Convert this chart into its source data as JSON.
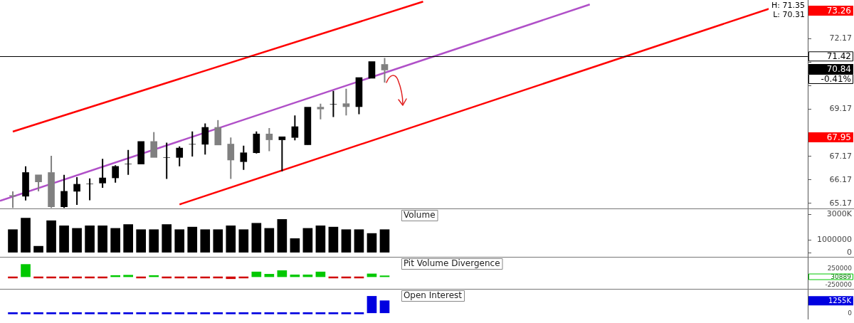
{
  "chart_data": [
    {
      "type": "candlestick",
      "categories": [
        null,
        null,
        null,
        null,
        null,
        null,
        null,
        null,
        null,
        null,
        null,
        null,
        null,
        null,
        null,
        null,
        null,
        null,
        null,
        null,
        null,
        null,
        null,
        null,
        null,
        null,
        null,
        null,
        null,
        null,
        null,
        null,
        null,
        null,
        null,
        null,
        null,
        null,
        null,
        null,
        null,
        null,
        null,
        null,
        null,
        null,
        null,
        null,
        null,
        null,
        null,
        null,
        null,
        null,
        null,
        null,
        null,
        null,
        null,
        null,
        null,
        null,
        null,
        null
      ],
      "colors": [
        null,
        "#808080",
        "#000000",
        "#808080",
        "#808080",
        "#000000",
        "#000000",
        "#000000",
        "#000000",
        "#000000",
        "#000000",
        "#000000",
        "#808080",
        "#000000",
        "#000000",
        "#000000",
        "#000000",
        "#808080",
        "#808080",
        "#000000",
        "#000000",
        "#808080",
        "#000000",
        "#000000",
        "#000000",
        "#808080",
        "#000000",
        "#808080",
        "#000000",
        "#000000",
        "#808080",
        null,
        null,
        null,
        null,
        null,
        null,
        null,
        null,
        null,
        null,
        null,
        null,
        null,
        null,
        null,
        null,
        null,
        null,
        null,
        null,
        null,
        null,
        null,
        null,
        null,
        null,
        null,
        null,
        null,
        null,
        null,
        null,
        null
      ],
      "ohlc": [
        null,
        [
          65.5,
          65.68,
          64.97,
          65.47
        ],
        [
          65.47,
          66.74,
          65.29,
          66.48
        ],
        [
          66.38,
          66.38,
          65.68,
          66.08
        ],
        [
          66.48,
          67.19,
          64.97,
          65.02
        ],
        [
          65.02,
          66.38,
          64.97,
          65.68
        ],
        [
          65.68,
          66.28,
          65.1,
          65.98
        ],
        [
          66.0,
          66.23,
          65.3,
          66.0
        ],
        [
          66.03,
          67.06,
          65.83,
          66.25
        ],
        [
          66.25,
          66.79,
          66.05,
          66.74
        ],
        [
          66.84,
          67.44,
          66.38,
          66.84
        ],
        [
          66.84,
          67.8,
          66.84,
          67.8
        ],
        [
          67.8,
          68.2,
          67.12,
          67.12
        ],
        [
          67.12,
          67.75,
          66.21,
          67.12
        ],
        [
          67.12,
          67.59,
          66.74,
          67.52
        ],
        [
          67.68,
          68.23,
          67.16,
          67.68
        ],
        [
          67.68,
          68.57,
          67.24,
          68.4
        ],
        [
          68.4,
          68.71,
          67.65,
          67.65
        ],
        [
          67.69,
          67.97,
          66.21,
          67.01
        ],
        [
          66.94,
          67.62,
          66.59,
          67.32
        ],
        [
          67.32,
          68.23,
          67.29,
          68.12
        ],
        [
          68.12,
          68.37,
          67.39,
          67.87
        ],
        [
          67.87,
          68.0,
          66.53,
          68.0
        ],
        [
          67.97,
          68.91,
          67.85,
          68.43
        ],
        [
          67.66,
          69.26,
          67.65,
          69.26
        ],
        [
          69.26,
          69.41,
          68.74,
          69.18
        ],
        [
          69.38,
          69.95,
          68.84,
          69.38
        ],
        [
          69.41,
          70.04,
          68.91,
          69.28
        ],
        [
          69.28,
          70.52,
          68.96,
          70.52
        ],
        [
          70.49,
          71.2,
          70.49,
          71.2
        ],
        [
          71.08,
          71.35,
          70.31,
          70.84
        ],
        null,
        null,
        null,
        null,
        null,
        null,
        null,
        null,
        null,
        null,
        null,
        null,
        null,
        null,
        null,
        null,
        null,
        null,
        null,
        null,
        null,
        null,
        null,
        null,
        null,
        null,
        null,
        null,
        null,
        null,
        null,
        null,
        null
      ],
      "series": [
        {
          "type": "line",
          "color": "#ff0000",
          "values": [
            null,
            68.22,
            null,
            null,
            null,
            null,
            null,
            null,
            null,
            null,
            null,
            null,
            null,
            null,
            null,
            null,
            null,
            null,
            null,
            null,
            null,
            null,
            null,
            null,
            null,
            null,
            null,
            null,
            null,
            null,
            null,
            null,
            null,
            73.75,
            null,
            null,
            null,
            null,
            null,
            null,
            null,
            null,
            null,
            null,
            null,
            null,
            null,
            null,
            null,
            null,
            null,
            null,
            null,
            null,
            null,
            null,
            null,
            null,
            null,
            null,
            null,
            null,
            null,
            null
          ]
        },
        {
          "type": "line",
          "color": "#b050c8",
          "values": [
            65.27,
            null,
            null,
            null,
            null,
            null,
            null,
            null,
            null,
            null,
            null,
            null,
            null,
            null,
            null,
            null,
            null,
            null,
            null,
            null,
            null,
            null,
            null,
            null,
            null,
            null,
            null,
            null,
            null,
            null,
            null,
            null,
            null,
            null,
            null,
            null,
            null,
            null,
            null,
            null,
            null,
            null,
            null,
            null,
            null,
            null,
            73.63,
            null,
            null,
            null,
            null,
            null,
            null,
            null,
            null,
            null,
            null,
            null,
            null,
            null,
            null,
            null,
            null,
            null
          ]
        },
        {
          "type": "line",
          "color": "#ff0000",
          "values": [
            null,
            null,
            null,
            null,
            null,
            null,
            null,
            null,
            null,
            null,
            null,
            null,
            null,
            null,
            65.12,
            null,
            null,
            null,
            null,
            null,
            null,
            null,
            null,
            null,
            null,
            null,
            null,
            null,
            null,
            null,
            null,
            null,
            null,
            null,
            null,
            null,
            null,
            null,
            null,
            null,
            null,
            null,
            null,
            null,
            null,
            null,
            null,
            null,
            null,
            null,
            null,
            null,
            null,
            null,
            null,
            null,
            null,
            null,
            null,
            null,
            73.45,
            null,
            null,
            null
          ]
        }
      ],
      "ylim": [
        64.95,
        73.82
      ],
      "yticks": [
        65.17,
        66.17,
        67.17,
        {
          "value": 68.17,
          "label": null
        },
        69.17,
        {
          "value": 70.17,
          "label": null
        },
        {
          "value": 71.17,
          "label": null
        },
        72.17
      ],
      "ref_lines": [
        {
          "axis": "y",
          "value": 71.42,
          "label": "71.42",
          "color": "#000000"
        }
      ],
      "annotations": [
        "73.26",
        "67.95",
        "70.84",
        "-0.41%",
        "H: 71.35",
        "L: 70.31"
      ],
      "tick_labels": "y"
    },
    {
      "type": "bar",
      "title": "Volume",
      "categories": [
        null,
        null,
        null,
        null,
        null,
        null,
        null,
        null,
        null,
        null,
        null,
        null,
        null,
        null,
        null,
        null,
        null,
        null,
        null,
        null,
        null,
        null,
        null,
        null,
        null,
        null,
        null,
        null,
        null,
        null,
        null,
        null,
        null,
        null,
        null,
        null,
        null,
        null,
        null,
        null,
        null,
        null,
        null,
        null,
        null,
        null,
        null,
        null,
        null,
        null,
        null,
        null,
        null,
        null,
        null,
        null,
        null,
        null,
        null,
        null,
        null,
        null,
        null,
        null
      ],
      "color": "#000000",
      "values": [
        null,
        1800000,
        2700000,
        500000,
        2500000,
        2100000,
        1900000,
        2100000,
        2100000,
        1900000,
        2200000,
        1800000,
        1800000,
        2200000,
        1800000,
        2000000,
        1800000,
        1800000,
        2100000,
        1800000,
        2300000,
        1900000,
        2600000,
        1100000,
        1900000,
        2100000,
        2000000,
        1800000,
        1800000,
        1500000,
        1800000,
        null,
        null,
        null,
        null,
        null,
        null,
        null,
        null,
        null,
        null,
        null,
        null,
        null,
        null,
        null,
        null,
        null,
        null,
        null,
        null,
        null,
        null,
        null,
        null,
        null,
        null,
        null,
        null,
        null,
        null,
        null,
        null,
        null
      ],
      "ylim": [
        -330000,
        3400000
      ],
      "yticks": [
        0,
        1000000,
        {
          "value": 3000000,
          "label": "3000K"
        }
      ],
      "tick_labels": "y"
    },
    {
      "type": "bar",
      "title": "Pit Volume Divergence",
      "categories": [
        null,
        null,
        null,
        null,
        null,
        null,
        null,
        null,
        null,
        null,
        null,
        null,
        null,
        null,
        null,
        null,
        null,
        null,
        null,
        null,
        null,
        null,
        null,
        null,
        null,
        null,
        null,
        null,
        null,
        null,
        null,
        null,
        null,
        null,
        null,
        null,
        null,
        null,
        null,
        null,
        null,
        null,
        null,
        null,
        null,
        null,
        null,
        null,
        null,
        null,
        null,
        null,
        null,
        null,
        null,
        null,
        null,
        null,
        null,
        null,
        null,
        null,
        null,
        null
      ],
      "values": [
        null,
        -40000,
        380000,
        -40000,
        -40000,
        -40000,
        -40000,
        -40000,
        -40000,
        40000,
        50000,
        -40000,
        40000,
        -40000,
        -40000,
        -40000,
        -40000,
        -40000,
        -60000,
        -40000,
        150000,
        80000,
        190000,
        60000,
        60000,
        150000,
        -40000,
        -40000,
        -40000,
        90000,
        30889,
        null,
        null,
        null,
        null,
        null,
        null,
        null,
        null,
        null,
        null,
        null,
        null,
        null,
        null,
        null,
        null,
        null,
        null,
        null,
        null,
        null,
        null,
        null,
        null,
        null,
        null,
        null,
        null,
        null,
        null,
        null,
        null,
        null
      ],
      "colors": [
        null,
        "#d00000",
        "#00c800",
        "#d00000",
        "#d00000",
        "#d00000",
        "#d00000",
        "#d00000",
        "#d00000",
        "#00c800",
        "#00c800",
        "#d00000",
        "#00c800",
        "#d00000",
        "#d00000",
        "#d00000",
        "#d00000",
        "#d00000",
        "#d00000",
        "#d00000",
        "#00c800",
        "#00c800",
        "#00c800",
        "#00c800",
        "#00c800",
        "#00c800",
        "#d00000",
        "#d00000",
        "#d00000",
        "#00c800",
        "#00c800",
        null,
        null,
        null,
        null,
        null,
        null,
        null,
        null,
        null,
        null,
        null,
        null,
        null,
        null,
        null,
        null,
        null,
        null,
        null,
        null,
        null,
        null,
        null,
        null,
        null,
        null,
        null,
        null,
        null,
        null,
        null,
        null,
        null
      ],
      "annotations": [
        "30889"
      ],
      "ylim": [
        -370000,
        590000
      ],
      "yticks": [
        250000,
        -250000
      ],
      "tick_labels": "y"
    },
    {
      "type": "bar",
      "title": "Open Interest",
      "categories": [
        null,
        null,
        null,
        null,
        null,
        null,
        null,
        null,
        null,
        null,
        null,
        null,
        null,
        null,
        null,
        null,
        null,
        null,
        null,
        null,
        null,
        null,
        null,
        null,
        null,
        null,
        null,
        null,
        null,
        null,
        null,
        null,
        null,
        null,
        null,
        null,
        null,
        null,
        null,
        null,
        null,
        null,
        null,
        null,
        null,
        null,
        null,
        null,
        null,
        null,
        null,
        null,
        null,
        null,
        null,
        null,
        null,
        null,
        null,
        null,
        null,
        null,
        null,
        null
      ],
      "color": "#0000e0",
      "values": [
        null,
        0,
        0,
        0,
        0,
        0,
        0,
        0,
        0,
        0,
        0,
        0,
        0,
        0,
        0,
        0,
        0,
        0,
        0,
        0,
        0,
        0,
        0,
        0,
        0,
        0,
        0,
        0,
        0,
        1700000,
        1255000,
        null,
        null,
        null,
        null,
        null,
        null,
        null,
        null,
        null,
        null,
        null,
        null,
        null,
        null,
        null,
        null,
        null,
        null,
        null,
        null,
        null,
        null,
        null,
        null,
        null,
        null,
        null,
        null,
        null,
        null,
        null,
        null,
        null
      ],
      "ylim": [
        -620000,
        2370000
      ],
      "yticks": [
        0,
        {
          "value": 1255000,
          "label": "1255K"
        }
      ],
      "tick_labels": "y"
    }
  ]
}
